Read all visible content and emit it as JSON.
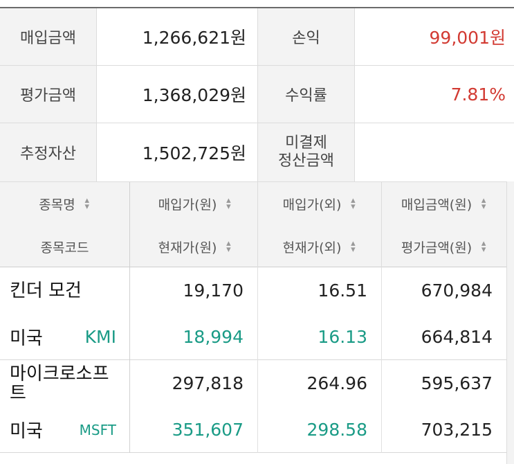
{
  "summary": {
    "purchase_amount_label": "매입금액",
    "purchase_amount_value": "1,266,621원",
    "profit_label": "손익",
    "profit_value": "99,001원",
    "eval_amount_label": "평가금액",
    "eval_amount_value": "1,368,029원",
    "return_label": "수익률",
    "return_value": "7.81%",
    "est_assets_label": "추정자산",
    "est_assets_value": "1,502,725원",
    "unsettled_label_line1": "미결제",
    "unsettled_label_line2": "정산금액",
    "unsettled_value": ""
  },
  "columns": {
    "name": "종목명",
    "code": "종목코드",
    "buy_price_krw": "매입가(원)",
    "cur_price_krw": "현재가(원)",
    "buy_price_fx": "매입가(외)",
    "cur_price_fx": "현재가(외)",
    "buy_amount": "매입금액(원)",
    "eval_amount": "평가금액(원)",
    "sort_icon": "sort-arrows-icon"
  },
  "holdings": [
    {
      "name": "킨더 모건",
      "country": "미국",
      "code": "KMI",
      "buy_price_krw": "19,170",
      "cur_price_krw": "18,994",
      "buy_price_fx": "16.51",
      "cur_price_fx": "16.13",
      "buy_amount": "670,984",
      "eval_amount": "664,814"
    },
    {
      "name": "마이크로소프트",
      "country": "미국",
      "code": "MSFT",
      "buy_price_krw": "297,818",
      "cur_price_krw": "351,607",
      "buy_price_fx": "264.96",
      "cur_price_fx": "298.58",
      "buy_amount": "595,637",
      "eval_amount": "703,215"
    }
  ],
  "colors": {
    "positive": "#d23a32",
    "current_price": "#1a9b86"
  }
}
